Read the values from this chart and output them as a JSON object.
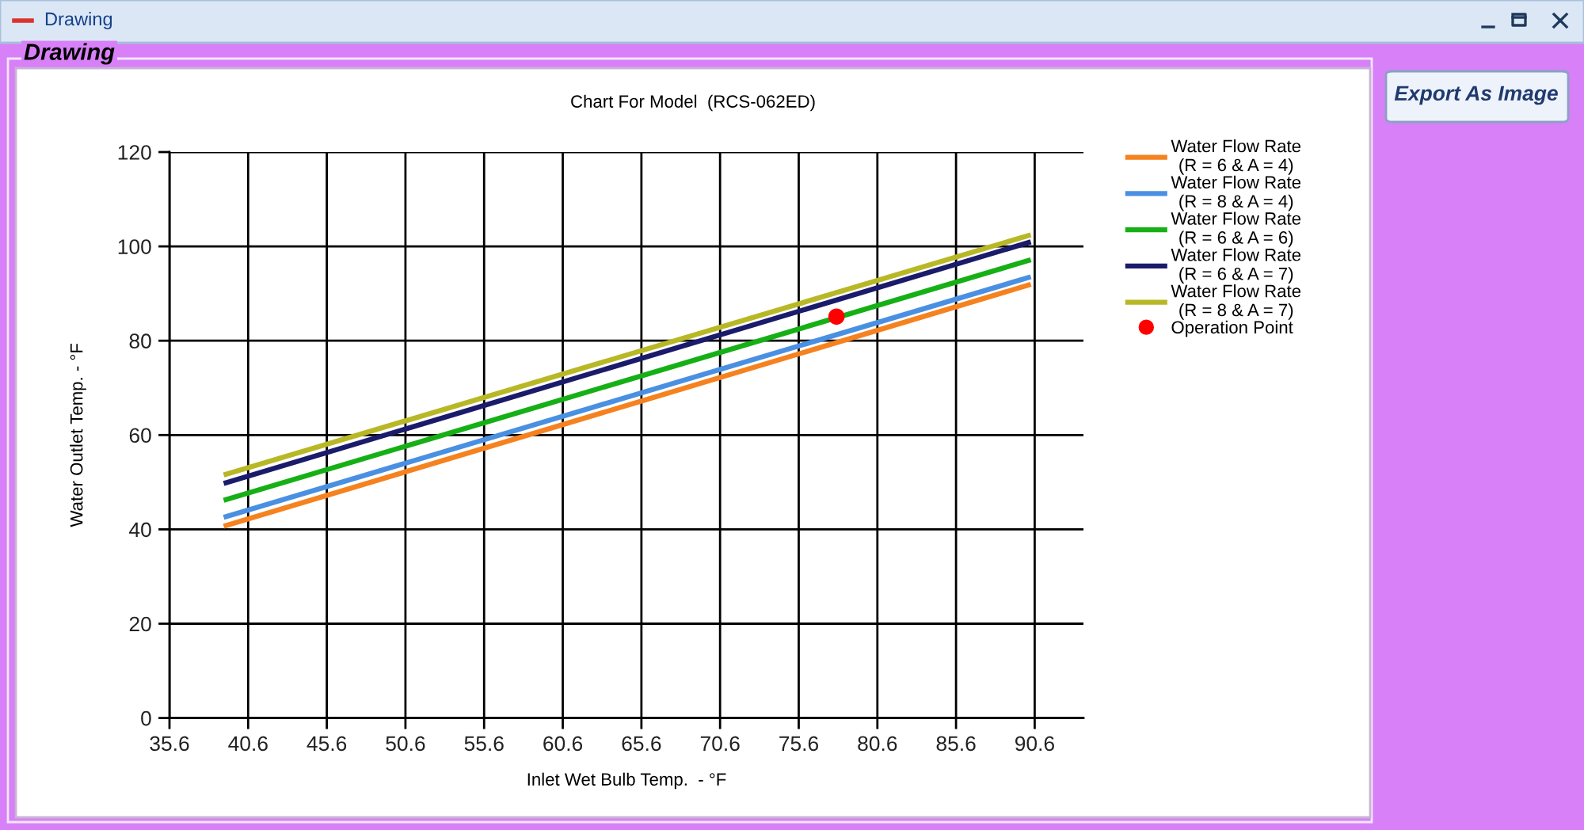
{
  "chart_data": {
    "type": "line",
    "title": "Chart For Model  (RCS-062ED)",
    "xlabel": "Inlet Wet Bulb Temp.  - °F",
    "ylabel": "Water Outlet Temp. - °F",
    "annotations": [
      "Drawing",
      "Drawing",
      "Export As Image"
    ],
    "series": [
      {
        "name": "Water Flow Rate\n(R = 6 & A = 4)",
        "color": "#f5821f",
        "x": [
          39.2,
          90.2
        ],
        "values": [
          40.8,
          91.8
        ]
      },
      {
        "name": "Water Flow Rate\n(R = 8 & A = 4)",
        "color": "#4a90e2",
        "x": [
          39.2,
          90.2
        ],
        "values": [
          42.7,
          93.4
        ]
      },
      {
        "name": "Water Flow Rate\n(R = 6 & A = 6)",
        "color": "#16b016",
        "x": [
          39.2,
          90.2
        ],
        "values": [
          46.3,
          97.0
        ]
      },
      {
        "name": "Water Flow Rate\n(R = 6 & A = 7)",
        "color": "#1b1b6b",
        "x": [
          39.2,
          90.2
        ],
        "values": [
          49.9,
          100.8
        ]
      },
      {
        "name": "Water Flow Rate\n(R = 8 & A = 7)",
        "color": "#b8b826",
        "x": [
          39.2,
          90.2
        ],
        "values": [
          51.7,
          102.3
        ]
      },
      {
        "name": "Operation Point",
        "type": "scatter",
        "marker": "circle",
        "color": "#ff0000",
        "x": [
          78.0
        ],
        "values": [
          85.1
        ]
      }
    ],
    "xlim": [
      35.6,
      93.7
    ],
    "xticks": [
      35.6,
      40.6,
      45.6,
      50.6,
      55.6,
      60.6,
      65.6,
      70.6,
      75.6,
      80.6,
      85.6,
      90.6
    ],
    "ylim": [
      0,
      120
    ],
    "yticks": [
      0,
      20,
      40,
      60,
      80,
      100,
      120
    ],
    "grid": true,
    "legend": "top right",
    "line_style": "solid",
    "marker": "none"
  }
}
